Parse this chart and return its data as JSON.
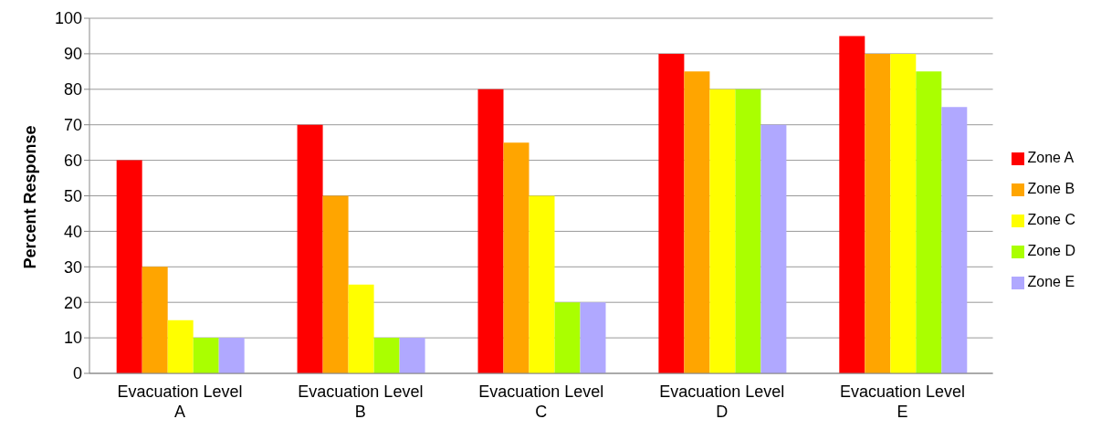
{
  "chart_data": {
    "type": "bar",
    "ylabel": "Percent Response",
    "categories": [
      "Evacuation Level A",
      "Evacuation Level B",
      "Evacuation Level C",
      "Evacuation Level D",
      "Evacuation Level E"
    ],
    "series": [
      {
        "name": "Zone A",
        "color": "#ff0000",
        "values": [
          60,
          70,
          80,
          90,
          95
        ]
      },
      {
        "name": "Zone B",
        "color": "#ffa500",
        "values": [
          30,
          50,
          65,
          85,
          90
        ]
      },
      {
        "name": "Zone C",
        "color": "#ffff00",
        "values": [
          15,
          25,
          50,
          80,
          90
        ]
      },
      {
        "name": "Zone D",
        "color": "#aaff00",
        "values": [
          10,
          10,
          20,
          80,
          85
        ]
      },
      {
        "name": "Zone E",
        "color": "#b0a8ff",
        "values": [
          10,
          10,
          20,
          70,
          75
        ]
      }
    ],
    "ylim": [
      0,
      100
    ],
    "yticks": [
      0,
      10,
      20,
      30,
      40,
      50,
      60,
      70,
      80,
      90,
      100
    ],
    "grid": "y",
    "legend": "right"
  }
}
